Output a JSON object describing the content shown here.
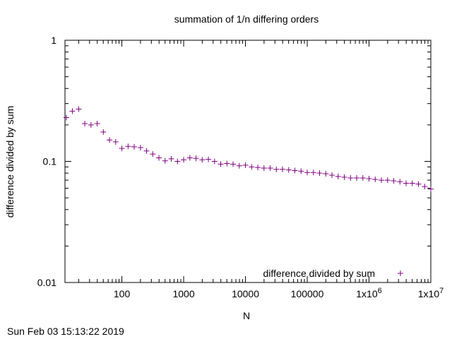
{
  "chart_data": {
    "type": "scatter",
    "title": "summation of 1/n differing orders",
    "xlabel": "N",
    "ylabel": "difference divided by sum",
    "xscale": "log",
    "yscale": "log",
    "xlim": [
      12,
      10000000
    ],
    "ylim": [
      0.01,
      1
    ],
    "x_ticks": [
      {
        "value": 100,
        "label": "100"
      },
      {
        "value": 1000,
        "label": "1000"
      },
      {
        "value": 10000,
        "label": "10000"
      },
      {
        "value": 100000,
        "label": "100000"
      },
      {
        "value": 1000000,
        "label": "1x10",
        "exp": "6"
      },
      {
        "value": 10000000,
        "label": "1x10",
        "exp": "7"
      }
    ],
    "y_ticks": [
      {
        "value": 0.01,
        "label": "0.01"
      },
      {
        "value": 0.1,
        "label": "0.1"
      },
      {
        "value": 1,
        "label": "1"
      }
    ],
    "legend_position": "bottom-right",
    "series": [
      {
        "name": "difference divided by sum",
        "color": "#800080",
        "marker": "+",
        "x": [
          12.6,
          15.8,
          20,
          25.1,
          31.6,
          39.8,
          50.1,
          63.1,
          79.4,
          100,
          126,
          158,
          200,
          251,
          316,
          398,
          501,
          631,
          794,
          1000,
          1259,
          1585,
          1995,
          2512,
          3162,
          3981,
          5012,
          6310,
          7943,
          10000,
          12589,
          15849,
          19953,
          25119,
          31623,
          39811,
          50119,
          63096,
          79433,
          100000,
          125893,
          158489,
          199526,
          251189,
          316228,
          398107,
          501187,
          630957,
          794328,
          1000000,
          1258925,
          1584893,
          1995262,
          2511886,
          3162278,
          3981072,
          5011872,
          6309573,
          7943282,
          10000000
        ],
        "y": [
          0.23,
          0.26,
          0.27,
          0.205,
          0.2,
          0.205,
          0.175,
          0.15,
          0.145,
          0.128,
          0.133,
          0.132,
          0.13,
          0.122,
          0.115,
          0.107,
          0.101,
          0.105,
          0.1,
          0.103,
          0.107,
          0.106,
          0.103,
          0.104,
          0.1,
          0.095,
          0.096,
          0.095,
          0.092,
          0.093,
          0.09,
          0.089,
          0.088,
          0.088,
          0.086,
          0.086,
          0.085,
          0.084,
          0.083,
          0.081,
          0.081,
          0.08,
          0.079,
          0.077,
          0.075,
          0.074,
          0.073,
          0.073,
          0.073,
          0.072,
          0.071,
          0.07,
          0.07,
          0.069,
          0.068,
          0.066,
          0.066,
          0.065,
          0.062,
          0.059
        ]
      }
    ]
  },
  "footer": {
    "timestamp": "Sun Feb 03 15:13:22 2019"
  }
}
